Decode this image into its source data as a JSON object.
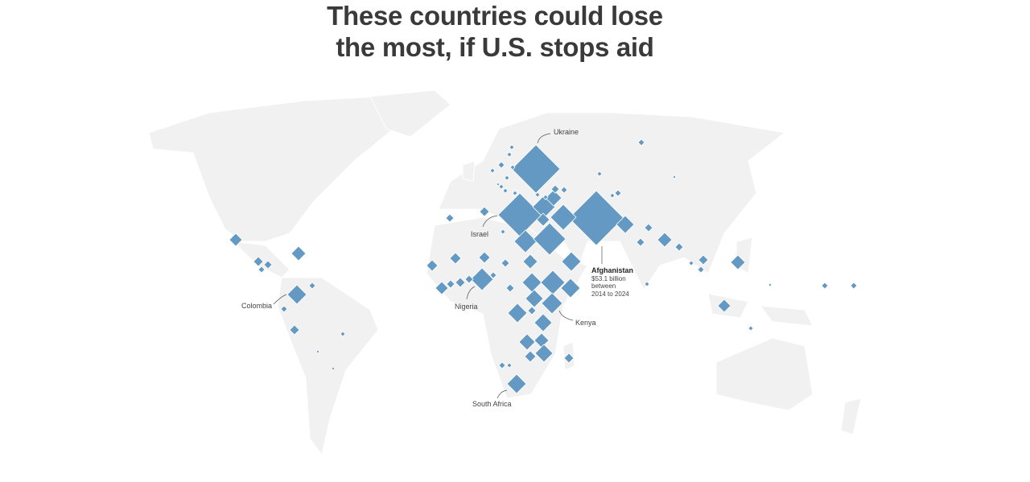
{
  "title": "These countries could lose the most, if U.S. stops aid",
  "annotations": [
    {
      "label": "Ukraine"
    },
    {
      "label": "Israel"
    },
    {
      "label": "Afghanistan",
      "detail": [
        "$53.1 billion",
        "between",
        "2014 to 2024"
      ]
    },
    {
      "label": "Colombia"
    },
    {
      "label": "Nigeria"
    },
    {
      "label": "Kenya"
    },
    {
      "label": "South Africa"
    }
  ]
}
